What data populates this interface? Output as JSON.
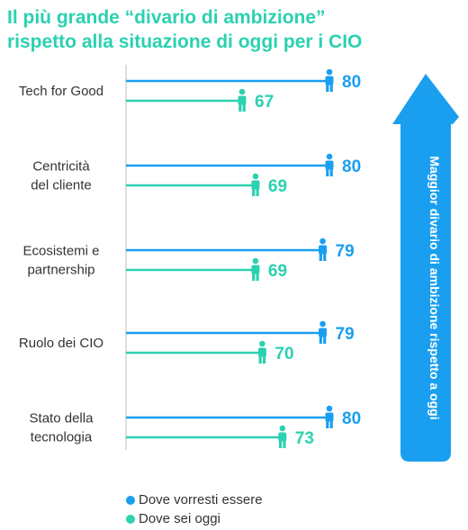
{
  "title_lines": [
    "Il più grande “divario di ambizione”",
    "rispetto alla situazione di oggi per i CIO"
  ],
  "colors": {
    "desired": "#1a9ff0",
    "today": "#2bd1b0",
    "arrow": "#1a9ff0",
    "title": "#2bd1b0"
  },
  "chart_data": {
    "type": "dumbbell",
    "title": "Il più grande “divario di ambizione” rispetto alla situazione di oggi per i CIO",
    "categories": [
      [
        "Tech for Good"
      ],
      [
        "Centricità",
        "del cliente"
      ],
      [
        "Ecosistemi e",
        "partnership"
      ],
      [
        "Ruolo dei CIO"
      ],
      [
        "Stato della",
        "tecnologia"
      ]
    ],
    "series": [
      {
        "name": "Dove vorresti essere",
        "values": [
          80,
          80,
          79,
          79,
          80
        ]
      },
      {
        "name": "Dove sei oggi",
        "values": [
          67,
          69,
          69,
          70,
          73
        ]
      }
    ],
    "arrow_label": "Maggior divario di ambizione rispetto a oggi",
    "legend_position": "bottom"
  },
  "legend": [
    "Dove vorresti essere",
    "Dove sei oggi"
  ]
}
